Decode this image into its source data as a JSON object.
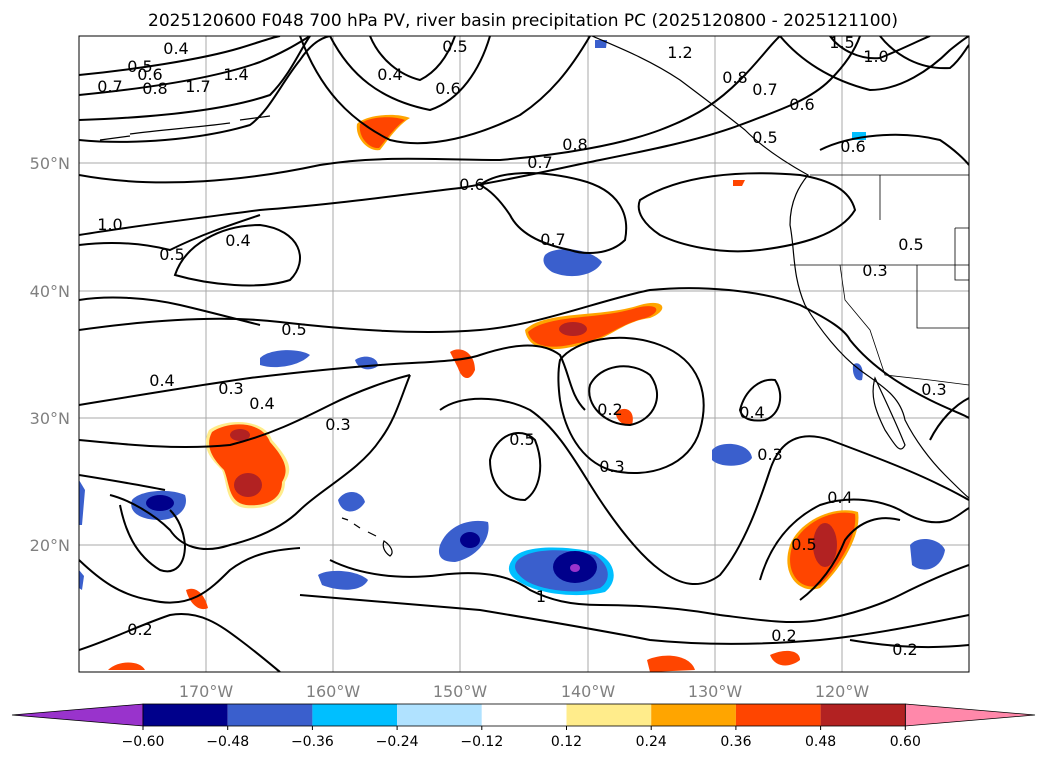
{
  "title": "2025120600 F048 700 hPa PV, river basin precipitation PC (2025120800 - 2025121100)",
  "lat_labels": [
    "50°N",
    "40°N",
    "30°N",
    "20°N"
  ],
  "lon_labels": [
    "170°W",
    "160°W",
    "150°W",
    "140°W",
    "130°W",
    "120°W"
  ],
  "contour_labels": [
    "0.4",
    "0.5",
    "0.6",
    "0.7",
    "0.8",
    "1.7",
    "1.4",
    "0.4",
    "0.6",
    "0.5",
    "1.2",
    "0.8",
    "0.7",
    "0.6",
    "1.5",
    "1.0",
    "0.5",
    "0.6",
    "0.8",
    "0.7",
    "0.6",
    "1.0",
    "0.5",
    "0.4",
    "0.7",
    "0.5",
    "0.3",
    "0.5",
    "0.4",
    "0.3",
    "0.4",
    "0.3",
    "0.2",
    "0.5",
    "0.3",
    "0.4",
    "0.3",
    "0.3",
    "0.4",
    "0.5",
    "1",
    "0.2",
    "0.2",
    "0.2"
  ],
  "colorbar": {
    "ticks": [
      "−0.60",
      "−0.48",
      "−0.36",
      "−0.24",
      "−0.12",
      "0.12",
      "0.24",
      "0.36",
      "0.48",
      "0.60"
    ],
    "colors": [
      "#9933cc",
      "#00008b",
      "#3a5fcd",
      "#00bfff",
      "#b0e2ff",
      "#ffffff",
      "#ffec8b",
      "#ffa500",
      "#ff4500",
      "#b22222",
      "#ff88aa"
    ]
  }
}
